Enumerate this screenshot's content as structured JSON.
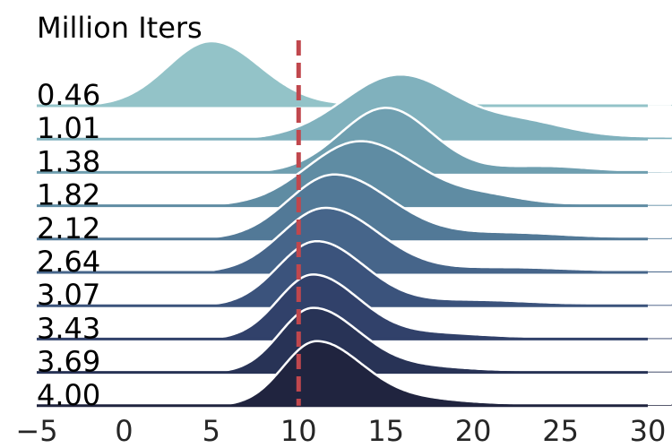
{
  "chart_data": {
    "type": "ridgeline",
    "title": "Million Iters",
    "xlabel": "",
    "ylabel": "",
    "xlim": [
      -5,
      30
    ],
    "xticks": [
      -5,
      0,
      5,
      10,
      15,
      20,
      25,
      30
    ],
    "reference_line": {
      "x": 10,
      "color": "#c0474d",
      "style": "dashed"
    },
    "grid": false,
    "series": [
      {
        "name": "0.46",
        "color": "#93c3c8",
        "components": [
          {
            "w": 1.0,
            "mu": 5.0,
            "sl": 2.5,
            "sr": 2.8
          }
        ],
        "tail": 0.02
      },
      {
        "name": "1.01",
        "color": "#80b1bd",
        "components": [
          {
            "w": 0.75,
            "mu": 15.8,
            "sl": 3.2,
            "sr": 3.2
          },
          {
            "w": 0.16,
            "mu": 23.0,
            "sl": 2.5,
            "sr": 2.5
          }
        ],
        "tail": 0.03
      },
      {
        "name": "1.38",
        "color": "#6f9fb0",
        "components": [
          {
            "w": 1.0,
            "mu": 15.0,
            "sl": 2.6,
            "sr": 2.6
          },
          {
            "w": 0.08,
            "mu": 24.0,
            "sl": 2.5,
            "sr": 2.5
          }
        ],
        "tail": 0.02
      },
      {
        "name": "1.82",
        "color": "#5f8ca3",
        "components": [
          {
            "w": 1.0,
            "mu": 13.5,
            "sl": 3.0,
            "sr": 3.3
          },
          {
            "w": 0.1,
            "mu": 21.0,
            "sl": 2.0,
            "sr": 2.0
          }
        ],
        "tail": 0.03
      },
      {
        "name": "2.12",
        "color": "#527997",
        "components": [
          {
            "w": 1.0,
            "mu": 12.0,
            "sl": 2.6,
            "sr": 3.2
          },
          {
            "w": 0.07,
            "mu": 22.0,
            "sl": 3.0,
            "sr": 3.0
          }
        ],
        "tail": 0.03
      },
      {
        "name": "2.64",
        "color": "#46658a",
        "components": [
          {
            "w": 1.0,
            "mu": 11.5,
            "sl": 2.5,
            "sr": 3.0
          },
          {
            "w": 0.05,
            "mu": 22.0,
            "sl": 3.0,
            "sr": 3.0
          }
        ],
        "tail": 0.03
      },
      {
        "name": "3.07",
        "color": "#3b537c",
        "components": [
          {
            "w": 1.0,
            "mu": 11.0,
            "sl": 2.2,
            "sr": 2.7
          },
          {
            "w": 0.06,
            "mu": 20.0,
            "sl": 3.0,
            "sr": 3.0
          }
        ],
        "tail": 0.03
      },
      {
        "name": "3.43",
        "color": "#31416a",
        "components": [
          {
            "w": 1.0,
            "mu": 10.8,
            "sl": 2.0,
            "sr": 2.6
          },
          {
            "w": 0.06,
            "mu": 18.0,
            "sl": 2.5,
            "sr": 2.5
          }
        ],
        "tail": 0.03
      },
      {
        "name": "3.69",
        "color": "#283356",
        "components": [
          {
            "w": 1.0,
            "mu": 10.8,
            "sl": 1.9,
            "sr": 2.6
          },
          {
            "w": 0.06,
            "mu": 17.0,
            "sl": 2.5,
            "sr": 2.5
          }
        ],
        "tail": 0.03
      },
      {
        "name": "4.00",
        "color": "#20243f",
        "components": [
          {
            "w": 1.0,
            "mu": 11.0,
            "sl": 1.9,
            "sr": 2.6
          },
          {
            "w": 0.07,
            "mu": 17.0,
            "sl": 2.5,
            "sr": 2.5
          }
        ],
        "tail": 0.03
      }
    ]
  }
}
